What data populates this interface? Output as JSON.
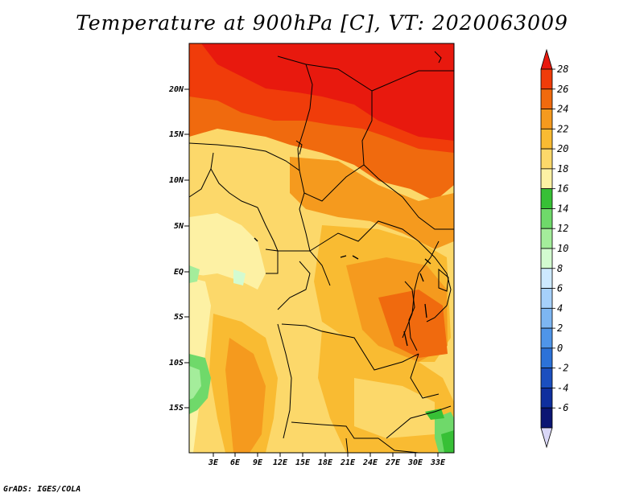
{
  "title": "Temperature at 900hPa [C], VT: 2020063009",
  "credit": "GrADS: IGES/COLA",
  "map": {
    "lat_labels": [
      "20N",
      "15N",
      "10N",
      "5N",
      "EQ",
      "5S",
      "10S",
      "15S"
    ],
    "lon_labels": [
      "3E",
      "6E",
      "9E",
      "12E",
      "15E",
      "18E",
      "21E",
      "24E",
      "27E",
      "30E",
      "33E"
    ]
  },
  "colorbar": {
    "labels": [
      "28",
      "26",
      "24",
      "22",
      "20",
      "18",
      "16",
      "14",
      "12",
      "10",
      "8",
      "6",
      "4",
      "2",
      "0",
      "-2",
      "-4",
      "-6"
    ],
    "colors": [
      "#e8190e",
      "#f03c0a",
      "#f06a0e",
      "#f59a1e",
      "#f9bb32",
      "#fcd86a",
      "#fdf1a4",
      "#37c036",
      "#6fd96a",
      "#a4ed9b",
      "#d3fbd0",
      "#cde9ff",
      "#a6d0fa",
      "#7db6f2",
      "#4f95e8",
      "#2c72d8",
      "#1b4fbf",
      "#0f2f9e",
      "#0b1573",
      "#d9d7f7"
    ]
  }
}
